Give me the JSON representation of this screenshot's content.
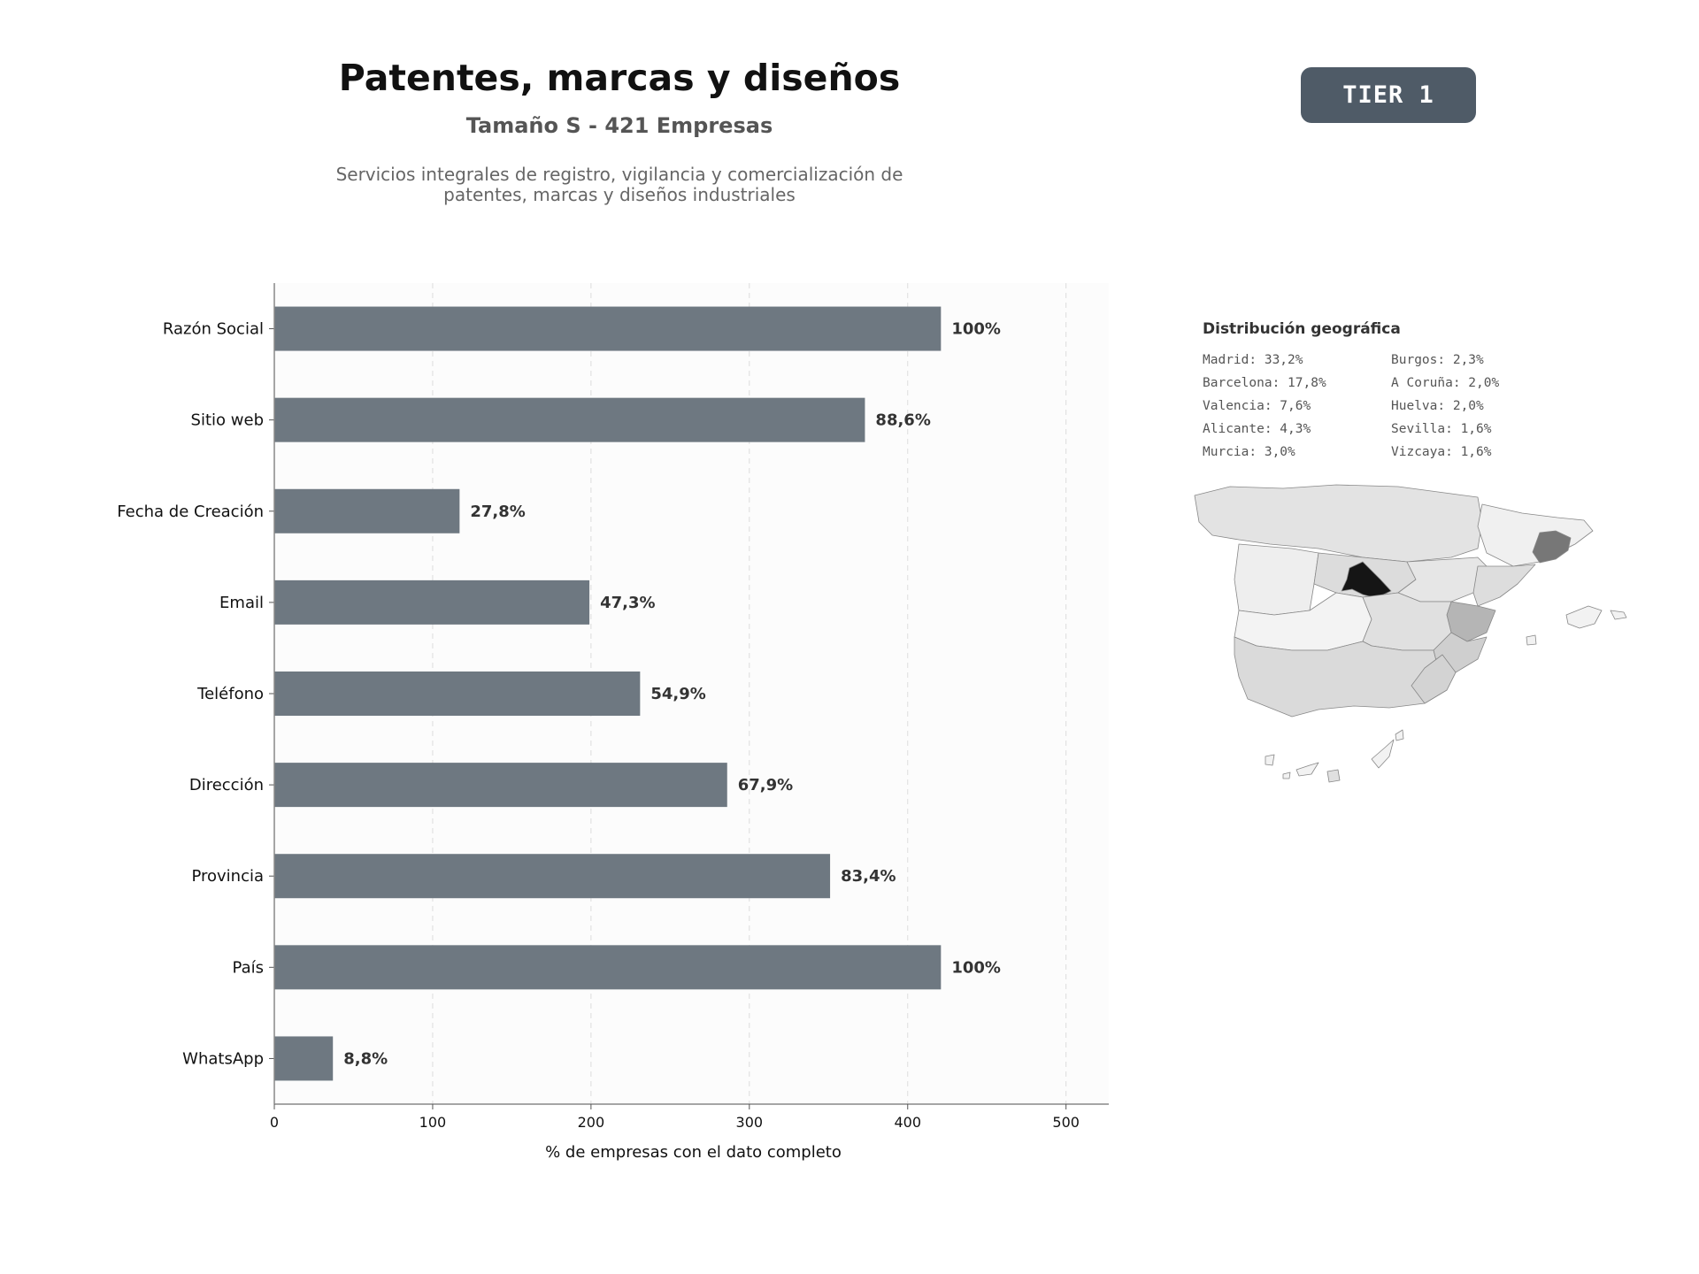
{
  "header": {
    "title": "Patentes, marcas y diseños",
    "subtitle": "Tamaño S - 421 Empresas",
    "description_line1": "Servicios integrales de registro, vigilancia y comercialización de",
    "description_line2": "patentes, marcas y diseños industriales",
    "tier": "TIER 1"
  },
  "chart_data": {
    "type": "bar",
    "orientation": "horizontal",
    "categories": [
      "Razón Social",
      "Sitio web",
      "Fecha de Creación",
      "Email",
      "Teléfono",
      "Dirección",
      "Provincia",
      "País",
      "WhatsApp"
    ],
    "values": [
      421,
      373,
      117,
      199,
      231,
      286,
      351,
      421,
      37
    ],
    "labels": [
      "100%",
      "88,6%",
      "27,8%",
      "47,3%",
      "54,9%",
      "67,9%",
      "83,4%",
      "100%",
      "8,8%"
    ],
    "xlabel": "% de empresas con el dato completo",
    "xlim": [
      0,
      527
    ],
    "xticks": [
      0,
      100,
      200,
      300,
      400,
      500
    ],
    "grid": "vertical-dashed",
    "bar_color": "#6e7881"
  },
  "geo": {
    "title": "Distribución geográfica",
    "left_column": [
      "Madrid: 33,2%",
      "Barcelona: 17,8%",
      "Valencia: 7,6%",
      "Alicante: 4,3%",
      "Murcia: 3,0%"
    ],
    "right_column": [
      "Burgos: 2,3%",
      "A Coruña: 2,0%",
      "Huelva: 2,0%",
      "Sevilla: 1,6%",
      "Vizcaya: 1,6%"
    ]
  }
}
